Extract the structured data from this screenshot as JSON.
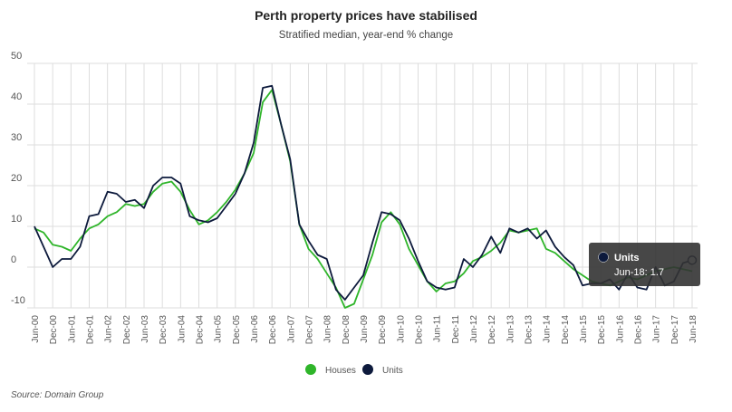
{
  "chart_data": {
    "type": "line",
    "title": "Perth property prices have stabilised",
    "subtitle": "Stratified median, year-end % change",
    "source": "Source: Domain Group",
    "categories": [
      "Jun-00",
      null,
      "Dec-00",
      null,
      "Jun-01",
      null,
      "Dec-01",
      null,
      "Jun-02",
      null,
      "Dec-02",
      null,
      "Jun-03",
      null,
      "Dec-03",
      null,
      "Jun-04",
      null,
      "Dec-04",
      null,
      "Jun-05",
      null,
      "Dec-05",
      null,
      "Jun-06",
      null,
      "Dec-06",
      null,
      "Jun-07",
      null,
      "Dec-07",
      null,
      "Jun-08",
      null,
      "Dec-08",
      null,
      "Jun-09",
      null,
      "Dec-09",
      null,
      "Jun-10",
      null,
      "Dec-10",
      null,
      "Jun-11",
      null,
      "Dec-11",
      null,
      "Jun-12",
      null,
      "Dec-12",
      null,
      "Jun-13",
      null,
      "Dec-13",
      null,
      "Jun-14",
      null,
      "Dec-14",
      null,
      "Jun-15",
      null,
      "Dec-15",
      null,
      "Jun-16",
      null,
      "Dec-16",
      null,
      "Jun-17",
      null,
      "Dec-17",
      null,
      "Jun-18"
    ],
    "series": [
      {
        "name": "Houses",
        "color": "#2fb52a",
        "values": [
          9.5,
          8.5,
          5.5,
          5,
          4,
          7,
          9.5,
          10.5,
          12.5,
          13.5,
          15.5,
          15,
          15.5,
          18.5,
          20.5,
          21,
          18.5,
          14,
          10.5,
          11.5,
          13.5,
          16,
          19,
          23,
          28,
          40.5,
          43.5,
          35,
          26,
          10.5,
          4.5,
          2,
          -1.5,
          -5,
          -10,
          -9,
          -3,
          3,
          11,
          13.5,
          10.5,
          4.5,
          0.5,
          -3.5,
          -6,
          -4,
          -3.5,
          -1.5,
          1.5,
          2.5,
          4,
          6,
          9,
          8.5,
          9,
          9.5,
          4.5,
          3.5,
          1.5,
          -0.5,
          -2,
          -3.5,
          -4,
          -4.5,
          -3.5,
          -2.5,
          -3,
          -2,
          -1,
          -0.5,
          0,
          -0.5,
          -1
        ]
      },
      {
        "name": "Units",
        "color": "#0d1a3c",
        "values": [
          10,
          5,
          0,
          2,
          2,
          5,
          12.5,
          13,
          18.5,
          18,
          16,
          16.5,
          14.5,
          20,
          22,
          22,
          20.5,
          12.5,
          11.5,
          11,
          12,
          15,
          18,
          23,
          30.5,
          44,
          44.5,
          35,
          26.5,
          10.5,
          6.5,
          3,
          2,
          -5.5,
          -8,
          -5,
          -2,
          6,
          13.5,
          13,
          11.5,
          7,
          1.5,
          -3.5,
          -5,
          -5.5,
          -5,
          2,
          0,
          3,
          7.5,
          3.5,
          9.5,
          8.5,
          9.5,
          7,
          9,
          5,
          2.5,
          0.5,
          -4.5,
          -4,
          -4,
          -3,
          -5.5,
          -1.5,
          -5,
          -5.5,
          0,
          -4.5,
          -3.5,
          1,
          1.7
        ]
      }
    ],
    "ylim": [
      -10,
      50
    ],
    "yticks": [
      -10,
      0,
      10,
      20,
      30,
      40,
      50
    ],
    "grid": true,
    "legend": "bottom",
    "tooltip": {
      "title": "Units",
      "text": "Jun-18: 1.7"
    }
  }
}
